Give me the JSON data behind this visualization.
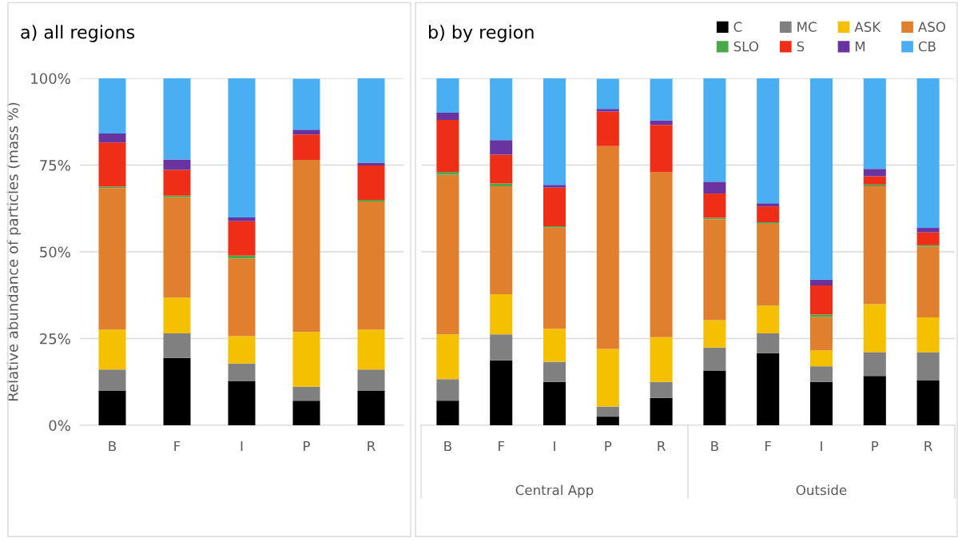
{
  "chart_data": [
    {
      "type": "bar",
      "stacked": true,
      "title": "a) all regions",
      "ylabel": "Relative abundance of particles (mass %)",
      "categories": [
        "B",
        "F",
        "I",
        "P",
        "R"
      ],
      "ylim": [
        0,
        100
      ],
      "yticks": [
        {
          "value": 0,
          "label": "0%"
        },
        {
          "value": 25,
          "label": "25%"
        },
        {
          "value": 50,
          "label": "50%"
        },
        {
          "value": 75,
          "label": "75%"
        },
        {
          "value": 100,
          "label": "100%"
        }
      ],
      "grid": "y",
      "legend": false,
      "series": [
        {
          "color": "#000000",
          "values": [
            10.0,
            19.4,
            12.8,
            7.1,
            10.0
          ]
        },
        {
          "color": "#808080",
          "values": [
            6.1,
            7.1,
            5.0,
            4.0,
            6.1
          ]
        },
        {
          "color": "#f5c000",
          "values": [
            11.5,
            10.3,
            7.9,
            15.8,
            11.5
          ]
        },
        {
          "color": "#e0802e",
          "values": [
            40.8,
            28.9,
            22.4,
            49.6,
            36.9
          ]
        },
        {
          "color": "#4aa84a",
          "values": [
            0.4,
            0.5,
            0.8,
            null,
            0.5
          ]
        },
        {
          "color": "#ee2e16",
          "values": [
            12.7,
            7.4,
            9.9,
            7.3,
            9.9
          ]
        },
        {
          "color": "#6a34a0",
          "values": [
            2.6,
            3.0,
            1.1,
            1.4,
            0.8
          ]
        },
        {
          "color": "#4aaef2",
          "values": [
            16.0,
            23.4,
            40.1,
            14.7,
            24.3
          ]
        }
      ]
    },
    {
      "type": "bar",
      "stacked": true,
      "title": "b) by region",
      "categories": [
        "B",
        "F",
        "I",
        "P",
        "R",
        "B",
        "F",
        "I",
        "P",
        "R"
      ],
      "annotations": [
        "Central App",
        "Outside"
      ],
      "ylim": [
        0,
        100
      ],
      "yticks": [
        {
          "value": 0,
          "label": null
        },
        {
          "value": 25,
          "label": null
        },
        {
          "value": 50,
          "label": null
        },
        {
          "value": 75,
          "label": null
        },
        {
          "value": 100,
          "label": null
        }
      ],
      "tick_labels": "x",
      "grid": "y",
      "legend": "top right",
      "series": [
        {
          "name": "C",
          "color": "#000000",
          "values": [
            7.1,
            18.7,
            12.5,
            2.5,
            7.9,
            15.8,
            20.8,
            12.5,
            14.2,
            12.9
          ]
        },
        {
          "name": "MC",
          "color": "#808080",
          "values": [
            6.2,
            7.5,
            5.8,
            2.9,
            4.6,
            6.6,
            5.7,
            4.5,
            6.9,
            8.2
          ]
        },
        {
          "name": "ASK",
          "color": "#f5c000",
          "values": [
            12.9,
            11.6,
            9.5,
            16.6,
            12.9,
            7.9,
            8.0,
            4.6,
            13.8,
            10.0
          ]
        },
        {
          "name": "ASO",
          "color": "#e0802e",
          "values": [
            46.0,
            31.1,
            29.2,
            58.5,
            47.5,
            29.1,
            23.6,
            9.6,
            34.0,
            20.4
          ]
        },
        {
          "name": "SLO",
          "color": "#4aa84a",
          "values": [
            0.8,
            0.8,
            0.4,
            null,
            null,
            0.4,
            0.4,
            0.7,
            0.5,
            0.4
          ]
        },
        {
          "name": "S",
          "color": "#ee2e16",
          "values": [
            15.0,
            8.3,
            11.1,
            9.9,
            13.7,
            7.0,
            4.6,
            8.4,
            2.4,
            3.7
          ]
        },
        {
          "name": "M",
          "color": "#6a34a0",
          "values": [
            2.1,
            4.2,
            0.8,
            0.8,
            1.3,
            3.4,
            0.9,
            1.7,
            2.1,
            1.3
          ]
        },
        {
          "name": "CB",
          "color": "#4aaef2",
          "values": [
            9.9,
            17.8,
            30.7,
            8.7,
            12.0,
            29.8,
            36.0,
            58.0,
            26.1,
            43.1
          ]
        }
      ]
    }
  ]
}
